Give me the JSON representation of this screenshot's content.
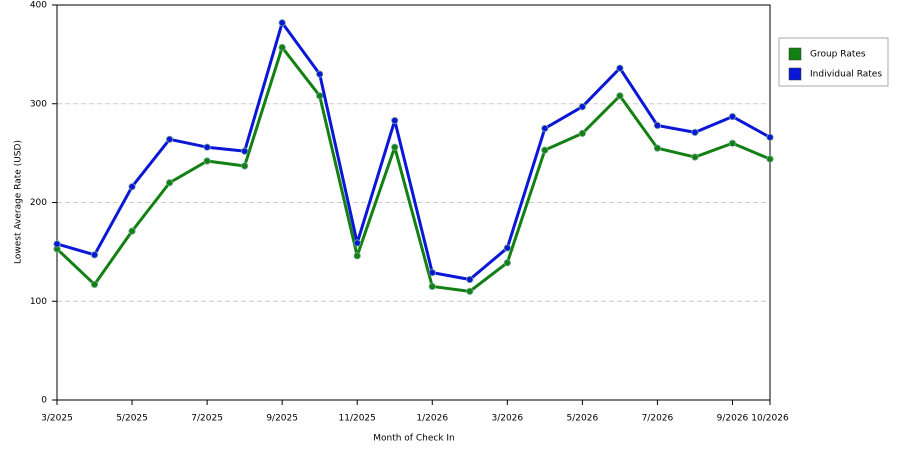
{
  "chart_data": {
    "type": "line",
    "x_label": "Month of Check In",
    "y_label": "Lowest Average Rate (USD)",
    "categories": [
      "3/2025",
      null,
      "5/2025",
      null,
      "7/2025",
      null,
      "9/2025",
      null,
      "11/2025",
      null,
      "1/2026",
      null,
      "3/2026",
      null,
      "5/2026",
      null,
      "7/2026",
      null,
      "9/2026",
      "10/2026"
    ],
    "series": [
      {
        "name": "Group Rates",
        "color": "#138013",
        "values": [
          153,
          117,
          171,
          220,
          242,
          237,
          357,
          308,
          146,
          256,
          115,
          110,
          139,
          253,
          270,
          308,
          255,
          246,
          260,
          244
        ]
      },
      {
        "name": "Individual Rates",
        "color": "#0b17d6",
        "values": [
          158,
          147,
          216,
          264,
          256,
          252,
          382,
          330,
          159,
          283,
          129,
          122,
          154,
          275,
          297,
          336,
          278,
          271,
          287,
          266
        ]
      }
    ],
    "ylim": [
      0,
      400
    ],
    "yticks": [
      0,
      100,
      200,
      300,
      400
    ],
    "grid": true,
    "legend": "top-right"
  }
}
